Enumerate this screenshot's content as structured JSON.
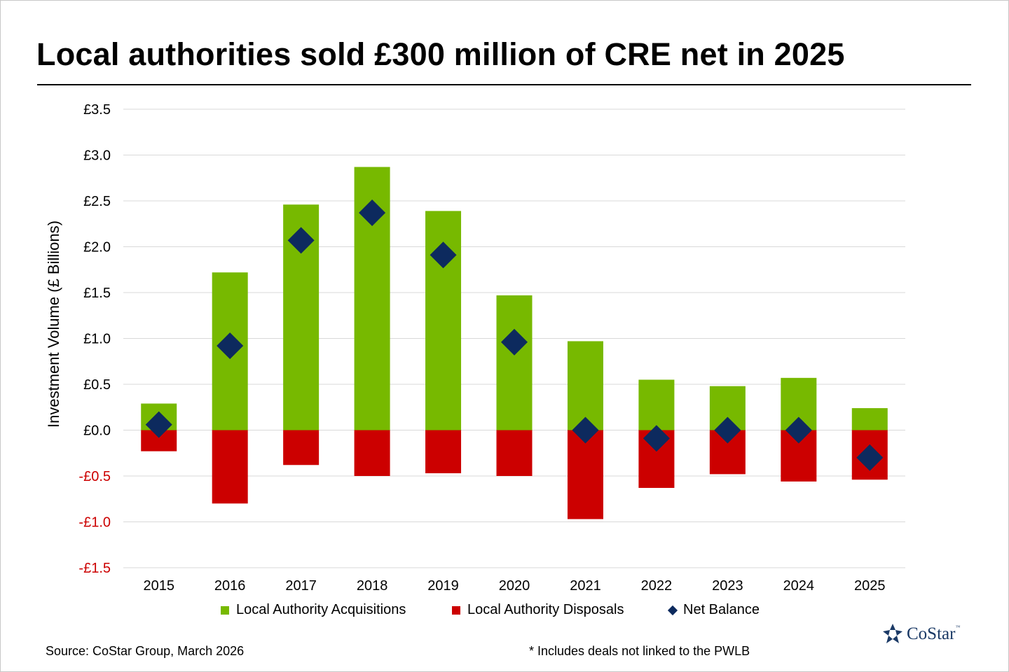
{
  "title": "Local authorities sold £300 million of CRE net in 2025",
  "source": "Source: CoStar Group, March 2026",
  "footnote": "* Includes deals not linked to the PWLB",
  "logo": {
    "name": "CoStar",
    "tm": "™",
    "icon": "costar-star-logo-icon"
  },
  "colors": {
    "acquisitions": "#77b900",
    "disposals": "#cc0000",
    "net": "#0d2a5e",
    "negative_tick": "#cc0000",
    "grid": "#d9d9d9"
  },
  "chart_data": {
    "type": "bar",
    "stacked": true,
    "title": "Local authorities sold £300 million of CRE net in 2025",
    "xlabel": "",
    "ylabel": "Investment Volume (£ Billions)",
    "ylim": [
      -1.5,
      3.5
    ],
    "yticks": [
      3.5,
      3.0,
      2.5,
      2.0,
      1.5,
      1.0,
      0.5,
      0.0,
      -0.5,
      -1.0,
      -1.5
    ],
    "ytick_labels": [
      "£3.5",
      "£3.0",
      "£2.5",
      "£2.0",
      "£1.5",
      "£1.0",
      "£0.5",
      "£0.0",
      "-£0.5",
      "-£1.0",
      "-£1.5"
    ],
    "grid": true,
    "legend_position": "bottom",
    "categories": [
      "2015",
      "2016",
      "2017",
      "2018",
      "2019",
      "2020",
      "2021",
      "2022",
      "2023",
      "2024",
      "2025"
    ],
    "series": [
      {
        "name": "Local Authority Acquisitions",
        "type": "bar",
        "values": [
          0.29,
          1.72,
          2.46,
          2.87,
          2.39,
          1.47,
          0.97,
          0.55,
          0.48,
          0.57,
          0.24
        ]
      },
      {
        "name": "Local Authority Disposals",
        "type": "bar",
        "values": [
          -0.23,
          -0.8,
          -0.38,
          -0.5,
          -0.47,
          -0.5,
          -0.97,
          -0.63,
          -0.48,
          -0.56,
          -0.54
        ]
      },
      {
        "name": "Net Balance",
        "type": "marker",
        "values": [
          0.06,
          0.92,
          2.07,
          2.37,
          1.91,
          0.96,
          0.0,
          -0.09,
          0.0,
          0.0,
          -0.3
        ]
      }
    ]
  }
}
